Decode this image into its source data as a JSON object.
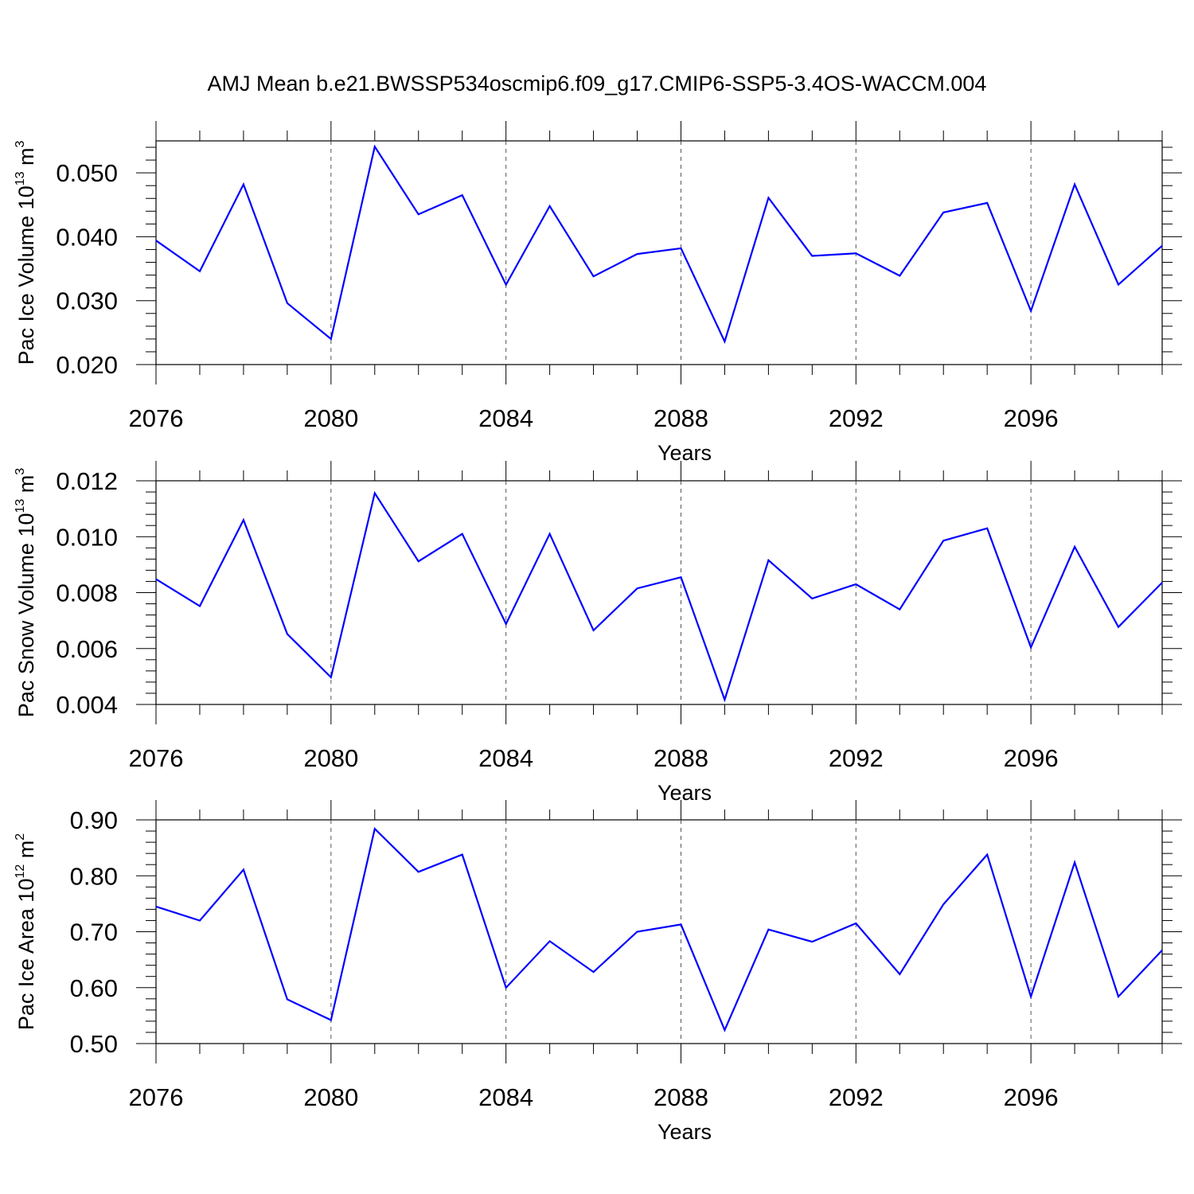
{
  "title": "AMJ Mean b.e21.BWSSP534oscmip6.f09_g17.CMIP6-SSP5-3.4OS-WACCM.004",
  "line_color": "#0000ff",
  "chart_data": [
    {
      "type": "line",
      "xlabel": "Years",
      "ylabel": {
        "text": "Pac Ice Volume 10",
        "exponent": "13",
        "unit": "m",
        "unit_exponent": "3"
      },
      "xlim": [
        2076,
        2099
      ],
      "ylim": [
        0.02,
        0.055
      ],
      "xticks": [
        "2076",
        "2080",
        "2084",
        "2088",
        "2092",
        "2096"
      ],
      "yticks": [
        "0.020",
        "0.030",
        "0.040",
        "0.050"
      ],
      "x": [
        2076,
        2077,
        2078,
        2079,
        2080,
        2081,
        2082,
        2083,
        2084,
        2085,
        2086,
        2087,
        2088,
        2089,
        2090,
        2091,
        2092,
        2093,
        2094,
        2095,
        2096,
        2097,
        2098,
        2099
      ],
      "values": [
        0.0394,
        0.0346,
        0.0482,
        0.0296,
        0.024,
        0.0541,
        0.0435,
        0.0465,
        0.0325,
        0.0448,
        0.0338,
        0.0373,
        0.0382,
        0.0236,
        0.0461,
        0.037,
        0.0374,
        0.0339,
        0.0438,
        0.0453,
        0.0284,
        0.0482,
        0.0325,
        0.0386
      ]
    },
    {
      "type": "line",
      "xlabel": "Years",
      "ylabel": {
        "text": "Pac Snow Volume 10",
        "exponent": "13",
        "unit": "m",
        "unit_exponent": "3"
      },
      "xlim": [
        2076,
        2099
      ],
      "ylim": [
        0.004,
        0.012
      ],
      "xticks": [
        "2076",
        "2080",
        "2084",
        "2088",
        "2092",
        "2096"
      ],
      "yticks": [
        "0.004",
        "0.006",
        "0.008",
        "0.010",
        "0.012"
      ],
      "x": [
        2076,
        2077,
        2078,
        2079,
        2080,
        2081,
        2082,
        2083,
        2084,
        2085,
        2086,
        2087,
        2088,
        2089,
        2090,
        2091,
        2092,
        2093,
        2094,
        2095,
        2096,
        2097,
        2098,
        2099
      ],
      "values": [
        0.00848,
        0.00752,
        0.0106,
        0.00652,
        0.00497,
        0.01156,
        0.00912,
        0.0101,
        0.00688,
        0.0101,
        0.00665,
        0.00815,
        0.00855,
        0.00417,
        0.00916,
        0.00779,
        0.0083,
        0.0074,
        0.00986,
        0.0103,
        0.00604,
        0.00964,
        0.00677,
        0.00836
      ]
    },
    {
      "type": "line",
      "xlabel": "Years",
      "ylabel": {
        "text": "Pac Ice Area 10",
        "exponent": "12",
        "unit": "m",
        "unit_exponent": "2"
      },
      "xlim": [
        2076,
        2099
      ],
      "ylim": [
        0.5,
        0.9
      ],
      "xticks": [
        "2076",
        "2080",
        "2084",
        "2088",
        "2092",
        "2096"
      ],
      "yticks": [
        "0.50",
        "0.60",
        "0.70",
        "0.80",
        "0.90"
      ],
      "x": [
        2076,
        2077,
        2078,
        2079,
        2080,
        2081,
        2082,
        2083,
        2084,
        2085,
        2086,
        2087,
        2088,
        2089,
        2090,
        2091,
        2092,
        2093,
        2094,
        2095,
        2096,
        2097,
        2098,
        2099
      ],
      "values": [
        0.745,
        0.72,
        0.811,
        0.579,
        0.542,
        0.884,
        0.807,
        0.838,
        0.6,
        0.683,
        0.628,
        0.7,
        0.713,
        0.524,
        0.704,
        0.682,
        0.715,
        0.624,
        0.749,
        0.838,
        0.584,
        0.824,
        0.584,
        0.667
      ]
    }
  ]
}
